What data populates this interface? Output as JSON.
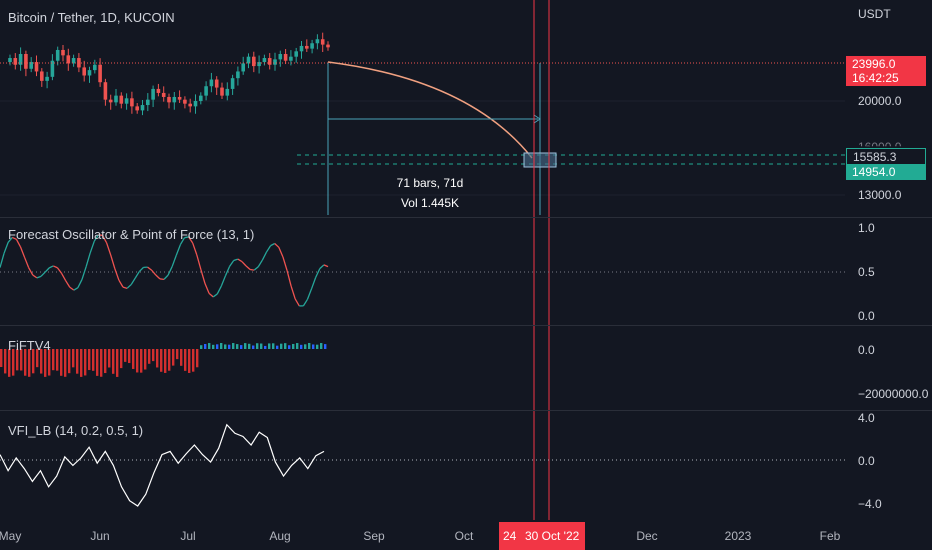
{
  "header": {
    "title": "Bitcoin / Tether, 1D, KUCOIN"
  },
  "price_axis": {
    "currency": "USDT",
    "labels": [
      "20000.0",
      "13000.0"
    ],
    "last_price": "23996.0",
    "countdown": "16:42:25",
    "level_upper": "15585.3",
    "level_lower": "14954.0",
    "partial_label": "16000.0"
  },
  "measure": {
    "bars": "71 bars, 71d",
    "volume": "Vol 1.445K"
  },
  "oscillator": {
    "title": "Forecast Oscillator & Point of Force (13, 1)",
    "axis": [
      "1.0",
      "0.5",
      "0.0"
    ]
  },
  "fiftv": {
    "title": "FiFTV4",
    "axis": [
      "0.0",
      "−20000000.0"
    ]
  },
  "vfi": {
    "title": "VFI_LB (14, 0.2, 0.5, 1)",
    "axis": [
      "4.0",
      "0.0",
      "−4.0"
    ]
  },
  "time_axis": {
    "labels": [
      "May",
      "Jun",
      "Jul",
      "Aug",
      "Sep",
      "Oct",
      "Dec",
      "2023",
      "Feb"
    ],
    "tag_left": "24",
    "tag_main": "30 Oct '22"
  },
  "colors": {
    "bg": "#131722",
    "up": "#26a69a",
    "down": "#ef5350",
    "marker_red": "#f23645",
    "level_green": "#22ab94"
  },
  "chart_data": {
    "type": "candlestick",
    "closes": [
      23200,
      22700,
      23500,
      22400,
      22900,
      22200,
      21500,
      21800,
      23000,
      23800,
      23400,
      22800,
      23200,
      22500,
      21900,
      22300,
      22700,
      21400,
      20100,
      19900,
      20400,
      19800,
      20200,
      19600,
      19300,
      19700,
      20100,
      20900,
      20600,
      20300,
      19900,
      20300,
      20100,
      19800,
      19600,
      20000,
      20400,
      21100,
      21600,
      21000,
      20400,
      20900,
      21700,
      22200,
      22800,
      23300,
      22600,
      22900,
      23200,
      22700,
      23100,
      23500,
      23000,
      23300,
      23700,
      24100,
      23900,
      24300,
      24600,
      24200,
      23996
    ]
  }
}
